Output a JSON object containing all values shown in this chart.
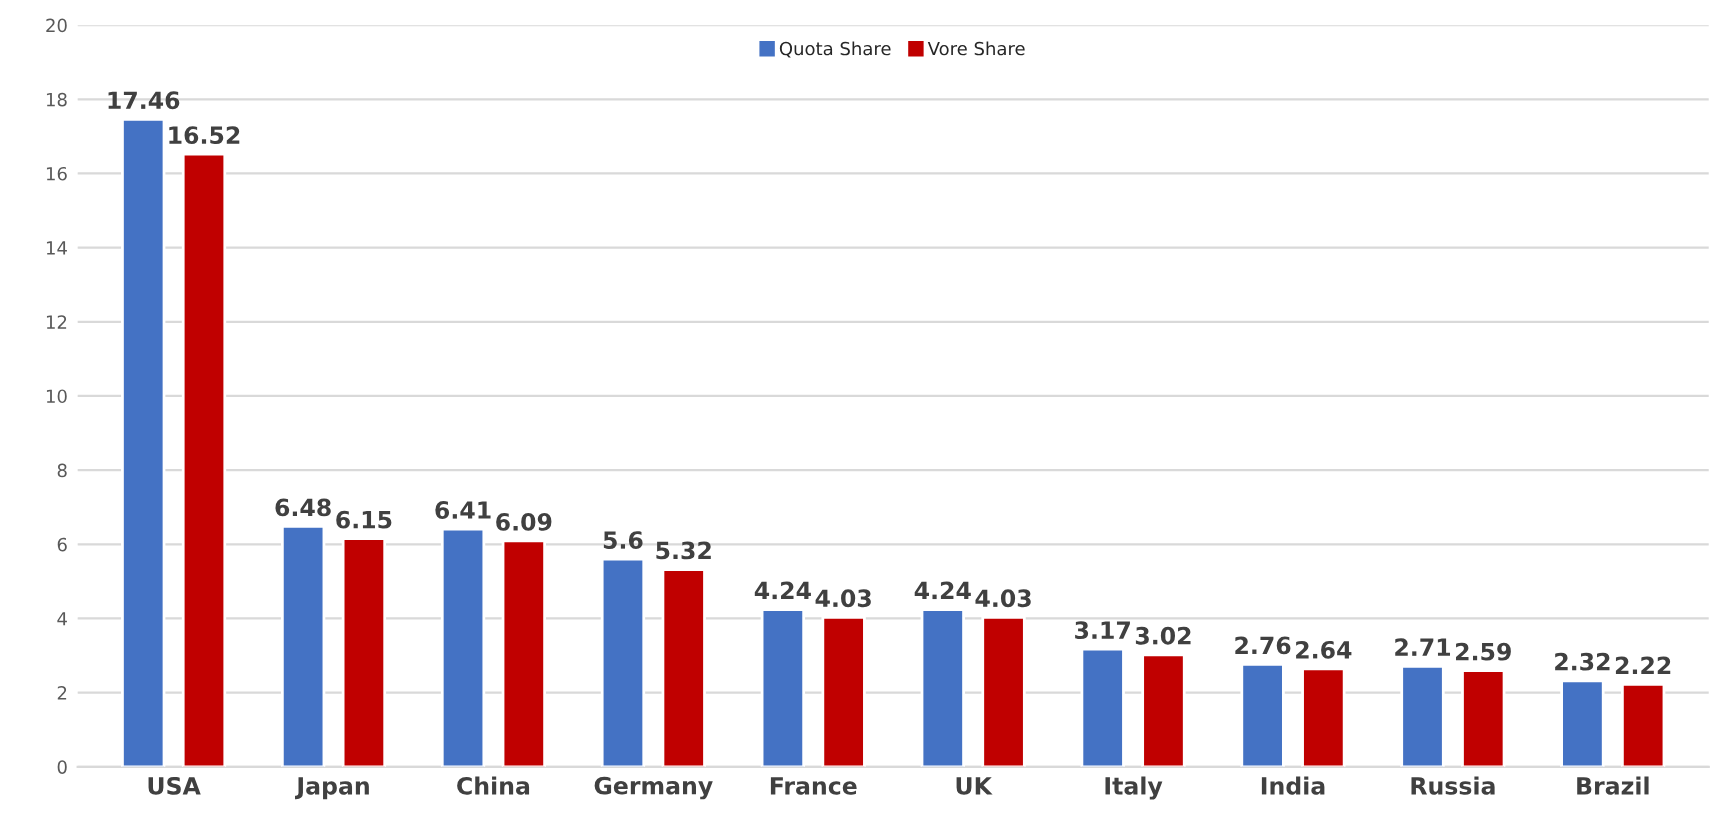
{
  "chart_data": {
    "type": "bar",
    "categories": [
      "USA",
      "Japan",
      "China",
      "Germany",
      "France",
      "UK",
      "Italy",
      "India",
      "Russia",
      "Brazil"
    ],
    "series": [
      {
        "name": "Quota Share",
        "color": "#4472c4",
        "values": [
          17.46,
          6.48,
          6.41,
          5.6,
          4.24,
          4.24,
          3.17,
          2.76,
          2.71,
          2.32
        ]
      },
      {
        "name": "Vore Share",
        "color": "#c00000",
        "values": [
          16.52,
          6.15,
          6.09,
          5.32,
          4.03,
          4.03,
          3.02,
          2.64,
          2.59,
          2.22
        ]
      }
    ],
    "ylim": [
      0,
      20
    ],
    "yticks": [
      0,
      2,
      4,
      6,
      8,
      10,
      12,
      14,
      16,
      18,
      20
    ],
    "grid": "y",
    "legend": "top",
    "data_labels": true
  }
}
